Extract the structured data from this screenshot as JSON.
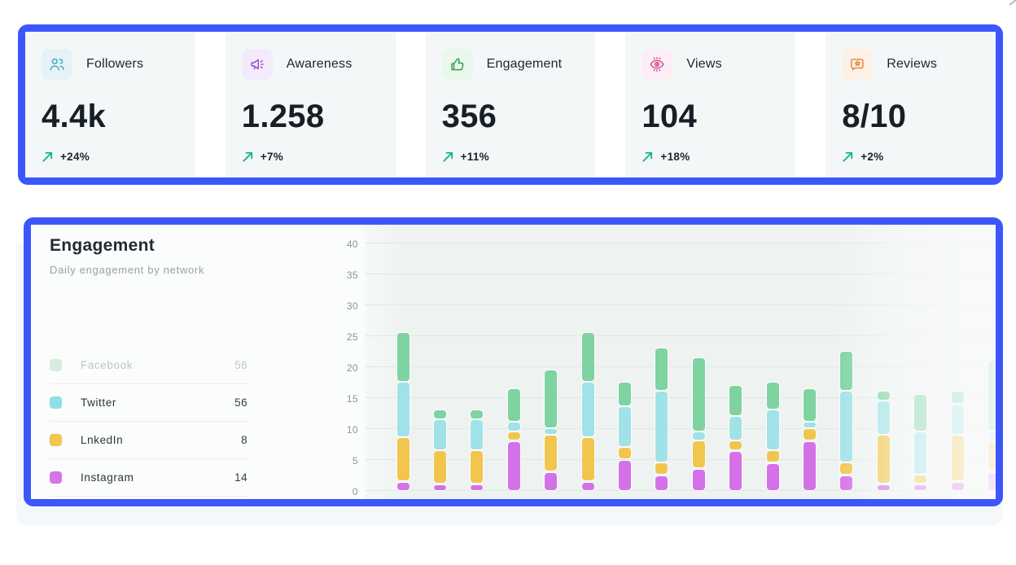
{
  "page": {
    "background": "#ffffff",
    "highlight_border_color": "#3d56fb"
  },
  "stat_cards": [
    {
      "icon": "followers-icon",
      "label": "Followers",
      "value": "4.4k",
      "delta": "+24%"
    },
    {
      "icon": "awareness-icon",
      "label": "Awareness",
      "value": "1.258",
      "delta": "+7%"
    },
    {
      "icon": "engagement-icon",
      "label": "Engagement",
      "value": "356",
      "delta": "+11%"
    },
    {
      "icon": "views-icon",
      "label": "Views",
      "value": "104",
      "delta": "+18%"
    },
    {
      "icon": "reviews-icon",
      "label": "Reviews",
      "value": "8/10",
      "delta": "+2%"
    }
  ],
  "delta_arrow_color": "#14b68b",
  "chart_panel": {
    "title": "Engagement",
    "subtitle": "Daily engagement by network",
    "legend": [
      {
        "label": "Facebook",
        "value": "56",
        "swatch_color": "#d6ecdf",
        "muted": true
      },
      {
        "label": "Twitter",
        "value": "56",
        "swatch_color": "#8fe0e6",
        "muted": false
      },
      {
        "label": "LnkedIn",
        "value": "8",
        "swatch_color": "#f2c54e",
        "muted": false
      },
      {
        "label": "Instagram",
        "value": "14",
        "swatch_color": "#d873e8",
        "muted": false
      }
    ]
  },
  "chart_data": {
    "type": "bar",
    "stacked": true,
    "title": "Engagement",
    "subtitle": "Daily engagement by network",
    "ylabel": "",
    "xlabel": "",
    "ylim": [
      0,
      40
    ],
    "yticks": [
      0,
      5,
      10,
      15,
      20,
      25,
      30,
      35,
      40
    ],
    "grid": true,
    "x_labels_shown": false,
    "bar_count": 17,
    "stack_order_bottom_to_top": [
      "Instagram",
      "LnkedIn",
      "Twitter",
      "Facebook"
    ],
    "series": [
      {
        "name": "Instagram",
        "color": "#d571e8",
        "values": [
          1.5,
          1,
          1,
          8,
          3,
          1.5,
          5,
          2.5,
          3.5,
          6.5,
          4.5,
          8,
          2.5,
          1,
          1,
          1.5,
          3
        ]
      },
      {
        "name": "LnkedIn",
        "color": "#f2c54e",
        "values": [
          7,
          5.5,
          5.5,
          1.5,
          6,
          7,
          2,
          2,
          4.5,
          1.5,
          2,
          2,
          2,
          8,
          1.5,
          7.5,
          5
        ]
      },
      {
        "name": "Twitter",
        "color": "#a0e2e7",
        "values": [
          9,
          5,
          5,
          1.5,
          1,
          9,
          6.5,
          11.5,
          1.5,
          4,
          6.5,
          1,
          11.5,
          5.5,
          7,
          5,
          1.5
        ]
      },
      {
        "name": "Facebook",
        "color": "#7ed3a1",
        "values": [
          8,
          1.5,
          1.5,
          5.5,
          9.5,
          8,
          4,
          7,
          12,
          5,
          4.5,
          5.5,
          6.5,
          1.5,
          6,
          2,
          11.5
        ]
      }
    ],
    "right_fade": true,
    "faded_from_bar_index": 13
  }
}
